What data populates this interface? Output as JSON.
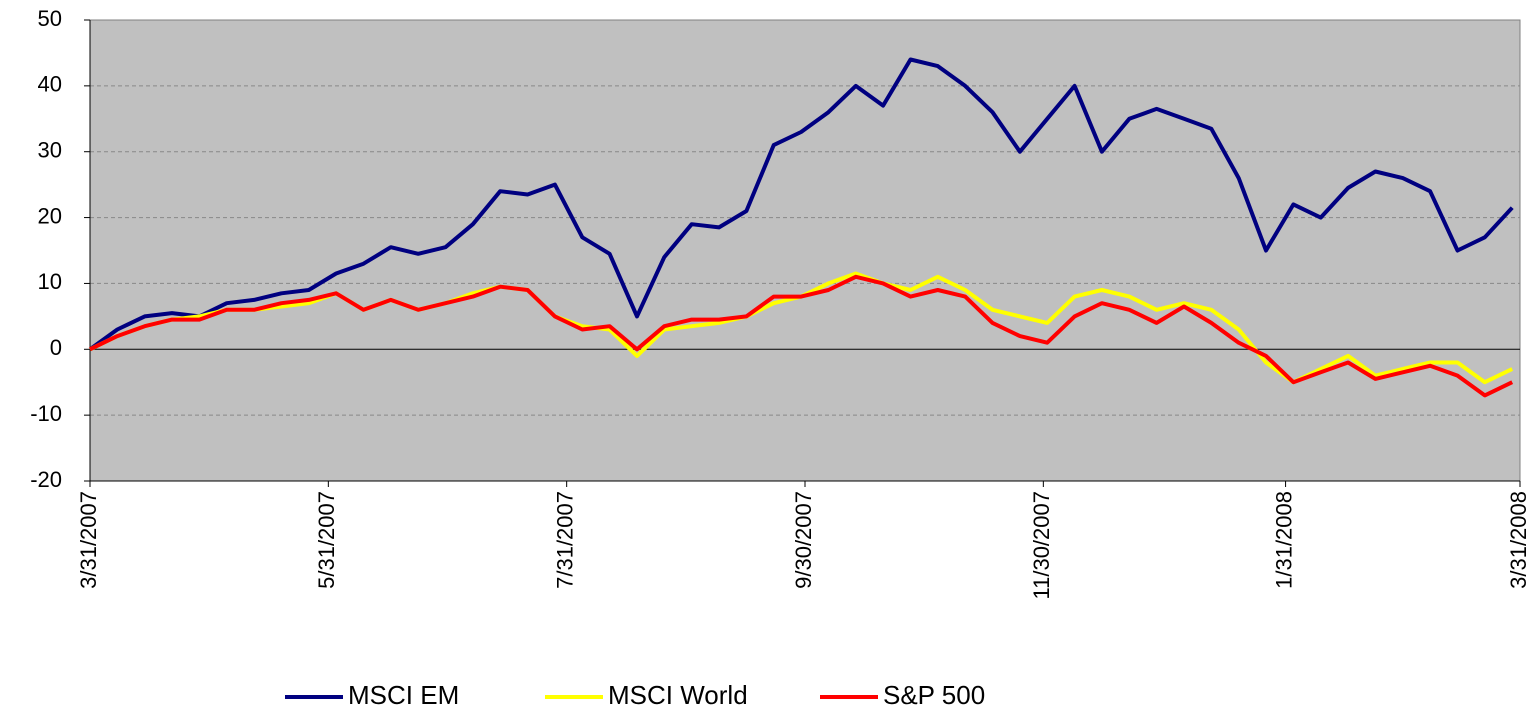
{
  "chart_data": {
    "type": "line",
    "x": [
      "2007-03-31",
      "2007-04-07",
      "2007-04-14",
      "2007-04-21",
      "2007-04-28",
      "2007-05-05",
      "2007-05-12",
      "2007-05-19",
      "2007-05-26",
      "2007-06-02",
      "2007-06-09",
      "2007-06-16",
      "2007-06-23",
      "2007-06-30",
      "2007-07-07",
      "2007-07-14",
      "2007-07-21",
      "2007-07-28",
      "2007-08-04",
      "2007-08-11",
      "2007-08-18",
      "2007-08-25",
      "2007-09-01",
      "2007-09-08",
      "2007-09-15",
      "2007-09-22",
      "2007-09-29",
      "2007-10-06",
      "2007-10-13",
      "2007-10-20",
      "2007-10-27",
      "2007-11-03",
      "2007-11-10",
      "2007-11-17",
      "2007-11-24",
      "2007-12-01",
      "2007-12-08",
      "2007-12-15",
      "2007-12-22",
      "2007-12-29",
      "2008-01-05",
      "2008-01-12",
      "2008-01-19",
      "2008-01-26",
      "2008-02-02",
      "2008-02-09",
      "2008-02-16",
      "2008-02-23",
      "2008-03-01",
      "2008-03-08",
      "2008-03-15",
      "2008-03-22",
      "2008-03-29"
    ],
    "series": [
      {
        "name": "MSCI EM",
        "color": "#000080",
        "values": [
          0,
          3,
          5,
          5.5,
          5,
          7,
          7.5,
          8.5,
          9,
          11.5,
          13,
          15.5,
          14.5,
          15.5,
          19,
          24,
          23.5,
          25,
          17,
          14.5,
          5,
          14,
          19,
          18.5,
          21,
          31,
          33,
          36,
          40,
          37,
          44,
          43,
          40,
          36,
          30,
          35,
          40,
          30,
          35,
          36.5,
          35,
          33.5,
          26,
          15,
          22,
          20,
          24.5,
          27,
          26,
          24,
          15,
          17,
          21.5
        ]
      },
      {
        "name": "MSCI World",
        "color": "#ffff00",
        "values": [
          0,
          2,
          3.5,
          4.5,
          5,
          6,
          6,
          6.5,
          7,
          8.5,
          6,
          7.5,
          6,
          7,
          8.5,
          9.5,
          9,
          5,
          3.5,
          3,
          -1,
          3,
          3.5,
          4,
          5,
          7,
          8,
          10,
          11.5,
          10,
          9,
          11,
          9,
          6,
          5,
          4,
          8,
          9,
          8,
          6,
          7,
          6,
          3,
          -2,
          -5,
          -3,
          -1,
          -4,
          -3,
          -2,
          -2,
          -5,
          -3
        ]
      },
      {
        "name": "S&P 500",
        "color": "#ff0000",
        "values": [
          0,
          2,
          3.5,
          4.5,
          4.5,
          6,
          6,
          7,
          7.5,
          8.5,
          6,
          7.5,
          6,
          7,
          8,
          9.5,
          9,
          5,
          3,
          3.5,
          0,
          3.5,
          4.5,
          4.5,
          5,
          8,
          8,
          9,
          11,
          10,
          8,
          9,
          8,
          4,
          2,
          1,
          5,
          7,
          6,
          4,
          6.5,
          4,
          1,
          -1,
          -5,
          -3.5,
          -2,
          -4.5,
          -3.5,
          -2.5,
          -4,
          -7,
          -5
        ]
      }
    ],
    "xlim": [
      "2007-03-31",
      "2008-03-31"
    ],
    "xticks": [
      {
        "value": "2007-03-31",
        "label": "3/31/2007"
      },
      {
        "value": "2007-05-31",
        "label": "5/31/2007"
      },
      {
        "value": "2007-07-31",
        "label": "7/31/2007"
      },
      {
        "value": "2007-09-30",
        "label": "9/30/2007"
      },
      {
        "value": "2007-11-30",
        "label": "11/30/2007"
      },
      {
        "value": "2008-01-31",
        "label": "1/31/2008"
      },
      {
        "value": "2008-03-31",
        "label": "3/31/2008"
      }
    ],
    "ylim": [
      -20,
      50
    ],
    "yticks": [
      -20,
      -10,
      0,
      10,
      20,
      30,
      40,
      50
    ],
    "grid": true,
    "legend": "bottom"
  }
}
